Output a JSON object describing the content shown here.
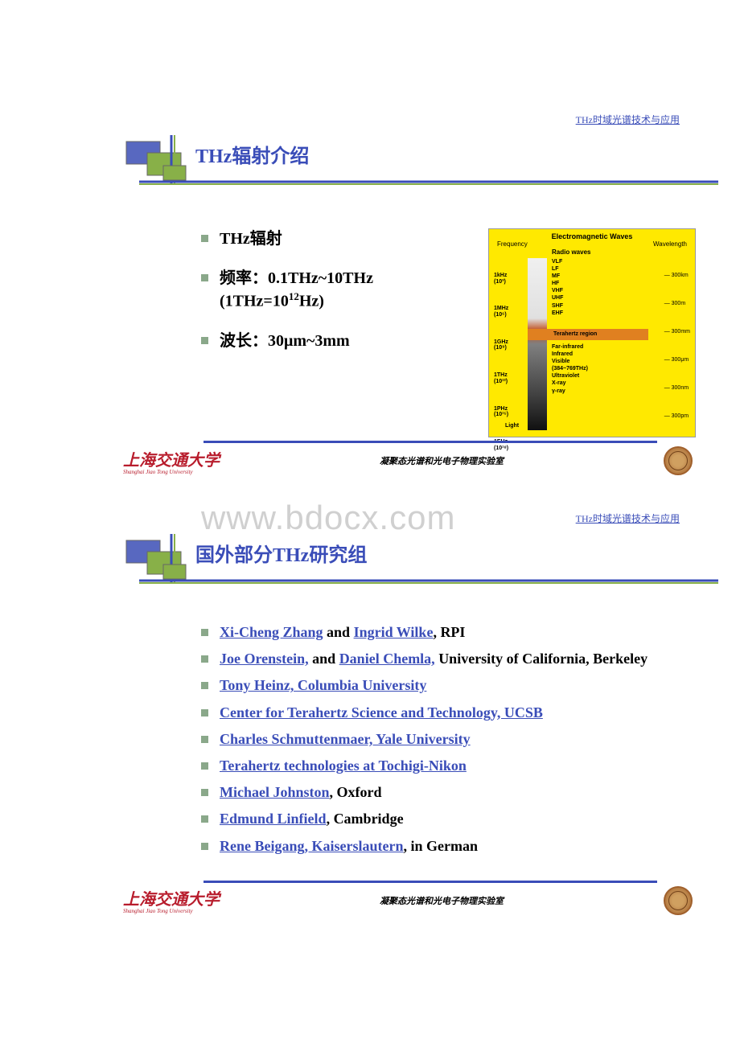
{
  "watermark": "www.bdocx.com",
  "header_link": "THz时域光谱技术与应用",
  "slide1": {
    "title": "THz辐射介绍",
    "bullets": [
      {
        "html": "THz辐射"
      },
      {
        "html": "频率：0.1THz~10THz<br>(1THz=10<span class='sup'>12</span>Hz)"
      },
      {
        "html": "波长：30μm~3mm"
      }
    ],
    "spectrum": {
      "title": "Electromagnetic Waves",
      "left_label": "Frequency",
      "right_label": "Wavelength",
      "radio": "Radio waves",
      "freq": [
        "1kHz<br>(10³)",
        "1MHz<br>(10⁶)",
        "1GHz<br>(10⁹)",
        "1THz<br>(10¹²)",
        "1PHz<br>(10¹⁵)",
        "1EHz<br>(10¹⁸)"
      ],
      "bands": [
        "VLF",
        "LF",
        "MF",
        "HF",
        "VHF",
        "UHF",
        "SHF",
        "EHF"
      ],
      "thz_label": "Terahertz region",
      "lower_bands": [
        "Far-infrared",
        "Infrared",
        "Visible<br>(384~769THz)",
        "Ultraviolet",
        "X-ray",
        "γ-ray"
      ],
      "waves": [
        "300km",
        "300m",
        "300mm",
        "300μm",
        "300nm",
        "300pm"
      ],
      "light_label": "Light"
    }
  },
  "slide2": {
    "title": "国外部分THz研究组",
    "items": [
      {
        "links": [
          "Xi-Cheng Zhang"
        ],
        "mid": " and ",
        "links2": [
          "Ingrid Wilke"
        ],
        "tail": ", RPI"
      },
      {
        "links": [
          "Joe Orenstein,"
        ],
        "mid": " and ",
        "links2": [
          "Daniel Chemla,"
        ],
        "tail": " University of California, Berkeley"
      },
      {
        "links": [
          "Tony Heinz, Columbia University"
        ],
        "tail": ""
      },
      {
        "links": [
          "Center for Terahertz Science and Technology, UCSB"
        ],
        "tail": ""
      },
      {
        "links": [
          "Charles Schmuttenmaer, Yale University"
        ],
        "tail": ""
      },
      {
        "links": [
          "Terahertz technologies at Tochigi-Nikon"
        ],
        "tail": ""
      },
      {
        "links": [
          "Michael Johnston"
        ],
        "tail": ", Oxford"
      },
      {
        "links": [
          "Edmund Linfield"
        ],
        "tail": ", Cambridge"
      },
      {
        "links": [
          "Rene Beigang, Kaiserslautern"
        ],
        "tail": ", in German"
      }
    ]
  },
  "footer": {
    "univ": "上海交通大学",
    "univ_en": "Shanghai Jiao Tong University",
    "lab": "凝聚态光谱和光电子物理实验室"
  },
  "colors": {
    "title": "#3a4db8",
    "link": "#3a4db8",
    "bullet": "#8aa88a",
    "deco_blue": "#5868c0",
    "deco_green": "#88b048",
    "spectrum_bg": "#ffe900",
    "univ": "#b81c2c"
  }
}
